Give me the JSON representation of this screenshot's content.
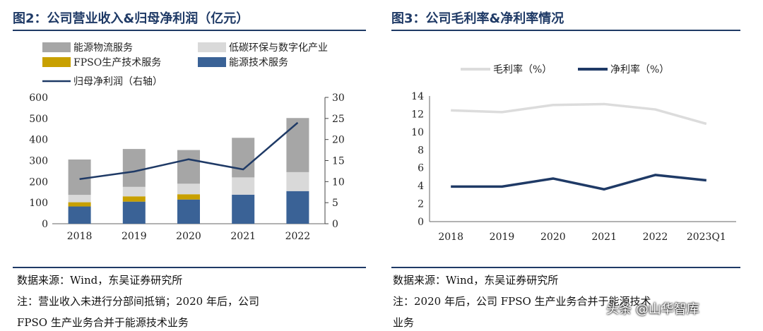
{
  "chart_data": [
    {
      "type": "bar",
      "stacked": true,
      "title": "图2：公司营业收入&归母净利润（亿元）",
      "categories": [
        "2018",
        "2019",
        "2020",
        "2021",
        "2022"
      ],
      "series": [
        {
          "name": "能源技术服务",
          "color": "#3a6296",
          "values": [
            82,
            105,
            115,
            138,
            155
          ]
        },
        {
          "name": "FPSO生产技术服务",
          "color": "#c8a000",
          "values": [
            20,
            25,
            25,
            0,
            0
          ]
        },
        {
          "name": "低碳环保与数字化产业",
          "color": "#d9d9d9",
          "values": [
            35,
            45,
            50,
            82,
            90
          ]
        },
        {
          "name": "能源物流服务",
          "color": "#a6a6a6",
          "values": [
            168,
            180,
            160,
            188,
            257
          ]
        }
      ],
      "line_series": {
        "name": "归母净利润（右轴）",
        "color": "#1f3a66",
        "values": [
          10.6,
          12.4,
          15.3,
          12.9,
          24.0
        ]
      },
      "ylim": [
        0,
        600
      ],
      "yticks": [
        "0",
        "100",
        "200",
        "300",
        "400",
        "500",
        "600"
      ],
      "y2lim": [
        0,
        30
      ],
      "y2ticks": [
        "0",
        "5",
        "10",
        "15",
        "20",
        "25",
        "30"
      ],
      "legend_position": "top"
    },
    {
      "type": "line",
      "title": "图3：公司毛利率&净利率情况",
      "categories": [
        "2018",
        "2019",
        "2020",
        "2021",
        "2022",
        "2023Q1"
      ],
      "series": [
        {
          "name": "毛利率（%）",
          "color": "#dcdcdc",
          "values": [
            12.4,
            12.2,
            13.0,
            13.1,
            12.5,
            10.9
          ]
        },
        {
          "name": "净利率（%）",
          "color": "#1f3a66",
          "values": [
            3.9,
            3.9,
            4.8,
            3.6,
            5.2,
            4.6
          ]
        }
      ],
      "ylim": [
        0,
        14
      ],
      "yticks": [
        "0",
        "2",
        "4",
        "6",
        "8",
        "10",
        "12",
        "14"
      ],
      "legend_position": "top"
    }
  ],
  "notes": {
    "left_source": "数据来源：Wind，东吴证券研究所",
    "left_note_1": "注：营业收入未进行分部间抵销；2020 年后，公司",
    "left_note_2": "FPSO 生产业务合并于能源技术业务",
    "right_source": "数据来源：Wind，东吴证券研究所",
    "right_note_1": "注：2020 年后，公司 FPSO 生产业务合并于能源技术",
    "right_note_2": "业务"
  },
  "watermark": "头条 @山华智库"
}
